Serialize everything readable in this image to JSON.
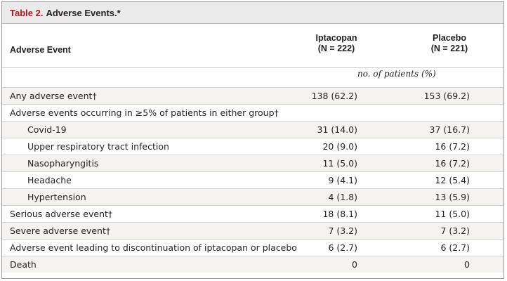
{
  "table": {
    "title_label": "Table 2.",
    "title_text": "Adverse Events.*",
    "header": {
      "event_col": "Adverse Event",
      "iptacopan_name": "Iptacopan",
      "iptacopan_n": "(N = 222)",
      "placebo_name": "Placebo",
      "placebo_n": "(N = 221)"
    },
    "unit_label": "no. of patients (%)",
    "rows": [
      {
        "label": "Any adverse event†",
        "iptacopan": "138 (62.2)",
        "placebo": "153 (69.2)"
      },
      {
        "label": "Adverse events occurring in ≥5% of patients in either group†",
        "iptacopan": "",
        "placebo": ""
      },
      {
        "label": "Covid-19",
        "iptacopan": "31 (14.0)",
        "placebo": "37 (16.7)"
      },
      {
        "label": "Upper respiratory tract infection",
        "iptacopan": "20 (9.0)",
        "placebo": "16 (7.2)"
      },
      {
        "label": "Nasopharyngitis",
        "iptacopan": "11 (5.0)",
        "placebo": "16 (7.2)"
      },
      {
        "label": "Headache",
        "iptacopan": "9 (4.1)",
        "placebo": "12 (5.4)"
      },
      {
        "label": "Hypertension",
        "iptacopan": "4 (1.8)",
        "placebo": "13 (5.9)"
      },
      {
        "label": "Serious adverse event†",
        "iptacopan": "18 (8.1)",
        "placebo": "11 (5.0)"
      },
      {
        "label": "Severe adverse event†",
        "iptacopan": "7 (3.2)",
        "placebo": "7 (3.2)"
      },
      {
        "label": "Adverse event leading to discontinuation of iptacopan or placebo",
        "iptacopan": "6 (2.7)",
        "placebo": "6 (2.7)"
      },
      {
        "label": "Death",
        "iptacopan": "0",
        "placebo": "0"
      }
    ]
  }
}
